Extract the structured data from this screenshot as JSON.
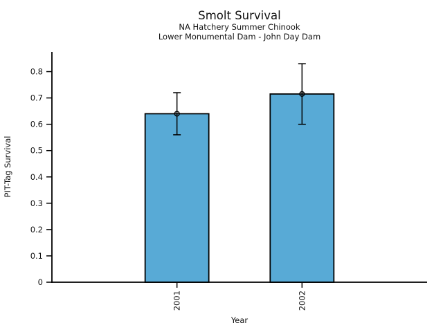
{
  "chart_data": {
    "type": "bar",
    "title": "Smolt Survival",
    "subtitle_lines": [
      "NA Hatchery Summer Chinook",
      "Lower Monumental Dam - John Day Dam"
    ],
    "xlabel": "Year",
    "ylabel": "PIT-Tag Survival",
    "categories": [
      "2001",
      "2002"
    ],
    "values": [
      0.64,
      0.715
    ],
    "error_bars": {
      "low": [
        0.56,
        0.6
      ],
      "high": [
        0.72,
        0.83
      ]
    },
    "ylim": [
      0,
      0.875
    ],
    "yticks": {
      "values": [
        0,
        0.1,
        0.2,
        0.3,
        0.4,
        0.5,
        0.6,
        0.7,
        0.8
      ],
      "labels": [
        "0",
        "0.1",
        "0.2",
        "0.3",
        "0.4",
        "0.5",
        "0.6",
        "0.7",
        "0.8"
      ]
    },
    "grid": false,
    "legend": false,
    "xtick_rotation": "vertical",
    "marker": "open-circle",
    "colors": {
      "bar_fill": "#58AAD6",
      "bar_edge": "#000000",
      "error": "#000000",
      "text": "#111111",
      "background": "#ffffff"
    }
  }
}
